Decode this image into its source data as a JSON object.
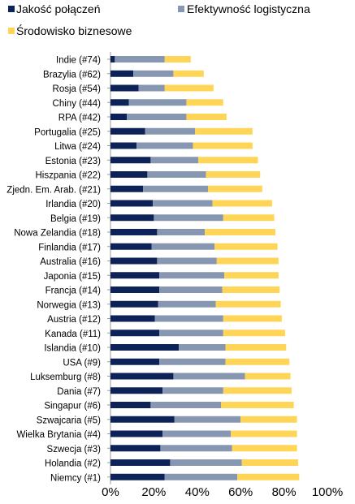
{
  "chart_data": {
    "type": "bar",
    "orientation": "horizontal",
    "stacked": true,
    "xlim": [
      0,
      100
    ],
    "x_ticks": [
      "0%",
      "20%",
      "40%",
      "60%",
      "80%",
      "100%"
    ],
    "grid": false,
    "legend_position": "top",
    "categories": [
      "Indie (#74)",
      "Brazylia (#62)",
      "Rosja (#54)",
      "Chiny (#44)",
      "RPA (#42)",
      "Portugalia (#25)",
      "Litwa (#24)",
      "Estonia (#23)",
      "Hiszpania (#22)",
      "Zjedn. Em. Arab. (#21)",
      "Irlandia (#20)",
      "Belgia (#19)",
      "Nowa Zelandia (#18)",
      "Finlandia (#17)",
      "Australia (#16)",
      "Japonia (#15)",
      "Francja (#14)",
      "Norwegia (#13)",
      "Austria (#12)",
      "Kanada (#11)",
      "Islandia (#10)",
      "USA (#9)",
      "Luksemburg (#8)",
      "Dania (#7)",
      "Singapur (#6)",
      "Szwajcaria (#5)",
      "Wielka Brytania (#4)",
      "Szwecja (#3)",
      "Holandia (#2)",
      "Niemcy (#1)"
    ],
    "series": [
      {
        "name": "Jakość połączeń",
        "color": "#0d2256",
        "values": [
          2,
          10.5,
          13,
          8.5,
          7.5,
          16,
          12,
          18.5,
          17,
          15,
          19.5,
          20,
          21.5,
          19,
          21.5,
          22.5,
          22.5,
          22,
          20.5,
          22.5,
          31.5,
          22.5,
          29,
          24,
          18.5,
          29.5,
          24,
          23,
          27.5,
          25
        ]
      },
      {
        "name": "Efektywność logistyczna",
        "color": "#8797b2",
        "values": [
          23,
          18.5,
          12,
          26.5,
          27.5,
          23,
          26,
          22,
          27,
          30,
          27.5,
          32,
          22,
          29,
          27.5,
          30,
          29,
          26.5,
          31.5,
          29.5,
          21.5,
          30.5,
          33,
          28,
          32.5,
          30.5,
          31.5,
          33,
          33,
          33.5
        ]
      },
      {
        "name": "Środowisko biznesowe",
        "color": "#ffd557",
        "values": [
          12,
          14,
          22.5,
          17,
          18.5,
          26.5,
          27.5,
          27.5,
          25,
          25,
          27.5,
          23.5,
          32.5,
          29,
          28.5,
          25,
          26.5,
          30,
          27,
          28.5,
          28,
          29.5,
          21,
          31.5,
          33.5,
          26,
          30.5,
          30,
          26,
          28.5
        ]
      }
    ]
  }
}
